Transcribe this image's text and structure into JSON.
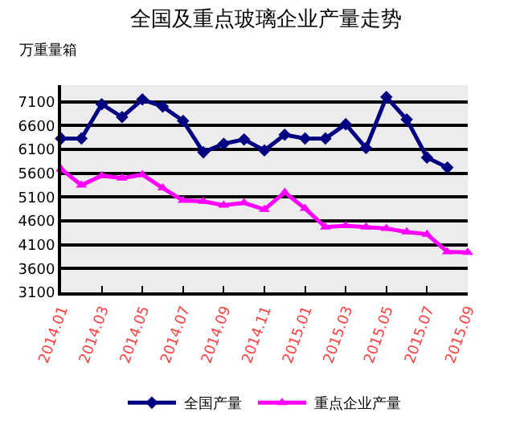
{
  "chart_data": {
    "type": "line",
    "title": "全国及重点玻璃企业产量走势",
    "ylabel": "万重量箱",
    "categories": [
      "2014.01",
      null,
      "2014.03",
      null,
      "2014.05",
      null,
      "2014.07",
      null,
      "2014.09",
      null,
      "2014.11",
      null,
      "2015.01",
      null,
      "2015.03",
      null,
      "2015.05",
      null,
      "2015.07",
      null,
      "2015.09"
    ],
    "series": [
      {
        "name": "全国产量",
        "color": "#000080",
        "marker": "diamond",
        "values": [
          6330,
          6330,
          7050,
          6780,
          7150,
          7000,
          6700,
          6040,
          6220,
          6310,
          6080,
          6410,
          6330,
          6330,
          6630,
          6130,
          7200,
          6730,
          5930,
          5720,
          null
        ]
      },
      {
        "name": "重点企业产量",
        "color": "#ff00ff",
        "marker": "triangle",
        "values": [
          5690,
          5350,
          5550,
          5500,
          5570,
          5290,
          5030,
          5010,
          4930,
          4980,
          4840,
          5200,
          4860,
          4470,
          4500,
          4470,
          4440,
          4370,
          4320,
          3950,
          3940
        ]
      }
    ],
    "ylim": [
      3100,
      7450
    ],
    "yticks": [
      3100,
      3600,
      4100,
      4600,
      5100,
      5600,
      6100,
      6600,
      7100
    ],
    "grid": "y",
    "legend": "bottom",
    "line_style": "solid"
  }
}
